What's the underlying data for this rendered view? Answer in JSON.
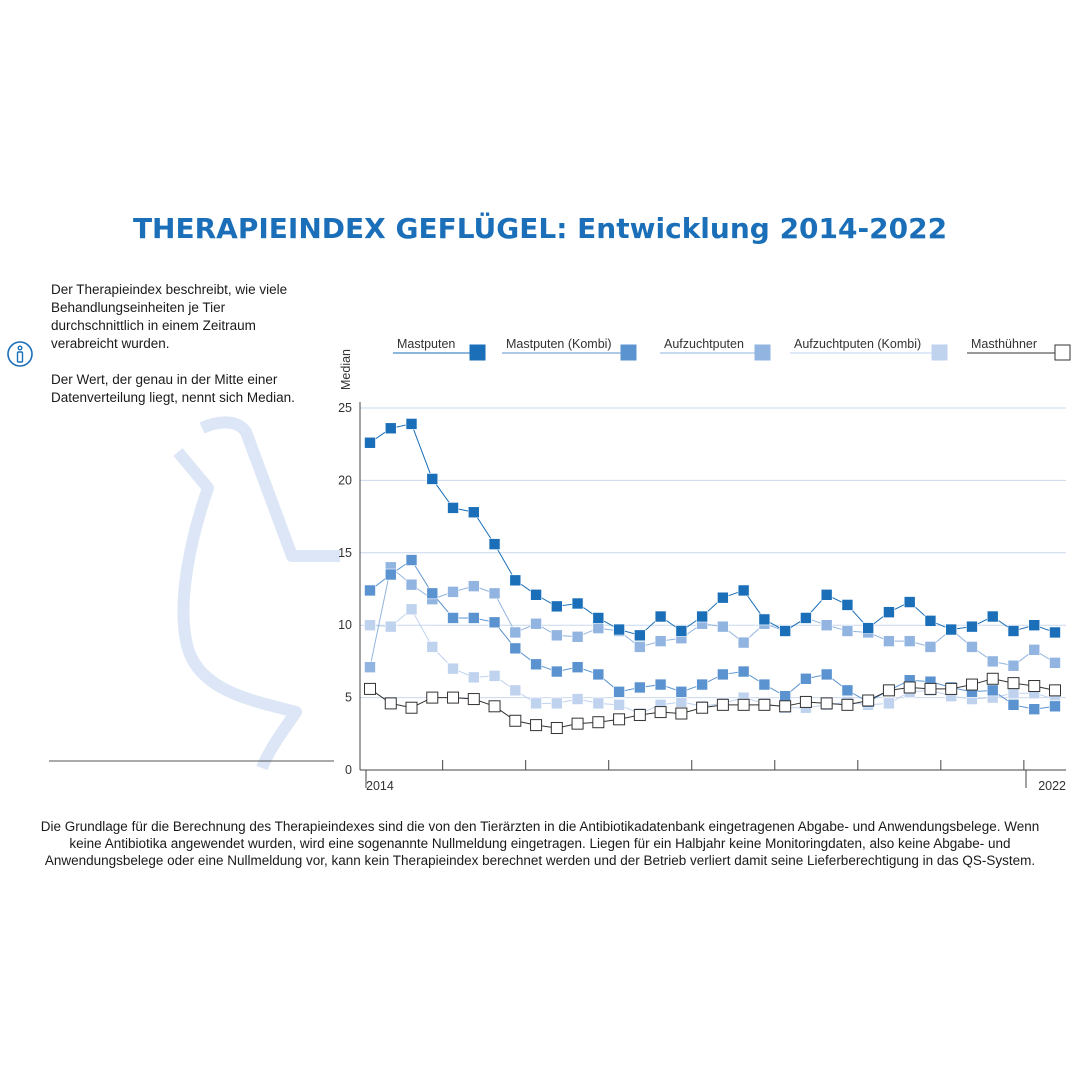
{
  "title": "THERAPIEINDEX GEFLÜGEL: Entwicklung 2014-2022",
  "intro": {
    "paragraph1": "Der Therapieindex beschreibt, wie viele Behandlungseinheiten je Tier durchschnittlich in einem Zeitraum verabreicht wurden.",
    "paragraph2": "Der Wert, der genau in der Mitte einer Datenverteilung liegt, nennt sich Median."
  },
  "footnote": "Die Grundlage für die Berechnung des Therapieindexes sind die von den Tierärzten in die Antibiotikadatenbank eingetragenen Abgabe- und Anwendungsbelege. Wenn keine Antibiotika angewendet wurden, wird eine sogenannte Nullmeldung eingetragen. Liegen für ein Halbjahr keine Monitoringdaten, also keine Abgabe- und Anwendungsbelege oder eine Nullmeldung vor, kann kein Therapieindex berechnet werden und der Betrieb verliert damit seine Lieferberechtigung in das QS-System.",
  "icons": {
    "info": "info-icon",
    "decoration": "bottle-outline"
  },
  "colors": {
    "title": "#1a6fb8",
    "Mastputen": "#1a6fb8",
    "Mastputen (Kombi)": "#5b93d0",
    "Aufzuchtputen": "#92b4e0",
    "Aufzuchtputen (Kombi)": "#bfd2ee",
    "Masthühner": "#ffffff",
    "masthuehner_stroke": "#333333",
    "grid": "#c9d9ee",
    "decoration": "#dce6f6"
  },
  "chart_data": {
    "type": "line",
    "ylabel": "Median",
    "xlabel": "",
    "ylim": [
      0,
      25
    ],
    "yticks": [
      0,
      5,
      10,
      15,
      20,
      25
    ],
    "x_start_label": "2014",
    "x_end_label": "2022",
    "n_points": 34,
    "grid": true,
    "legend_position": "top",
    "series": [
      {
        "name": "Mastputen",
        "values": [
          22.6,
          23.6,
          23.9,
          20.1,
          18.1,
          17.8,
          15.6,
          13.1,
          12.1,
          11.3,
          11.5,
          10.5,
          9.7,
          9.3,
          10.6,
          9.6,
          10.6,
          11.9,
          12.4,
          10.4,
          9.6,
          10.5,
          12.1,
          11.4,
          9.8,
          10.9,
          11.6,
          10.3,
          9.7,
          9.9,
          10.6,
          9.6,
          10.0,
          9.5
        ]
      },
      {
        "name": "Mastputen (Kombi)",
        "values": [
          12.4,
          13.5,
          14.5,
          12.2,
          10.5,
          10.5,
          10.2,
          8.4,
          7.3,
          6.8,
          7.1,
          6.6,
          5.4,
          5.7,
          5.9,
          5.4,
          5.9,
          6.6,
          6.8,
          5.9,
          5.1,
          6.3,
          6.6,
          5.5,
          4.7,
          5.5,
          6.2,
          6.1,
          5.7,
          5.4,
          5.5,
          4.5,
          4.2,
          4.4
        ]
      },
      {
        "name": "Aufzuchtputen",
        "values": [
          7.1,
          14.0,
          12.8,
          11.8,
          12.3,
          12.7,
          12.2,
          9.5,
          10.1,
          9.3,
          9.2,
          9.8,
          9.6,
          8.5,
          8.9,
          9.1,
          10.1,
          9.9,
          8.8,
          10.1,
          9.6,
          10.5,
          10.0,
          9.6,
          9.5,
          8.9,
          8.9,
          8.5,
          9.7,
          8.5,
          7.5,
          7.2,
          8.3,
          7.4
        ]
      },
      {
        "name": "Aufzuchtputen (Kombi)",
        "values": [
          10.0,
          9.9,
          11.1,
          8.5,
          7.0,
          6.4,
          6.5,
          5.5,
          4.6,
          4.6,
          4.9,
          4.6,
          4.5,
          3.9,
          4.5,
          4.7,
          4.4,
          4.6,
          5.0,
          4.6,
          4.3,
          4.3,
          4.5,
          4.7,
          4.5,
          4.6,
          5.4,
          5.5,
          5.1,
          4.9,
          5.0,
          5.3,
          5.3,
          4.9
        ]
      },
      {
        "name": "Masthühner",
        "values": [
          5.6,
          4.6,
          4.3,
          5.0,
          5.0,
          4.9,
          4.4,
          3.4,
          3.1,
          2.9,
          3.2,
          3.3,
          3.5,
          3.8,
          4.0,
          3.9,
          4.3,
          4.5,
          4.5,
          4.5,
          4.4,
          4.7,
          4.6,
          4.5,
          4.8,
          5.5,
          5.7,
          5.6,
          5.6,
          5.9,
          6.3,
          6.0,
          5.8,
          5.5
        ]
      }
    ]
  }
}
